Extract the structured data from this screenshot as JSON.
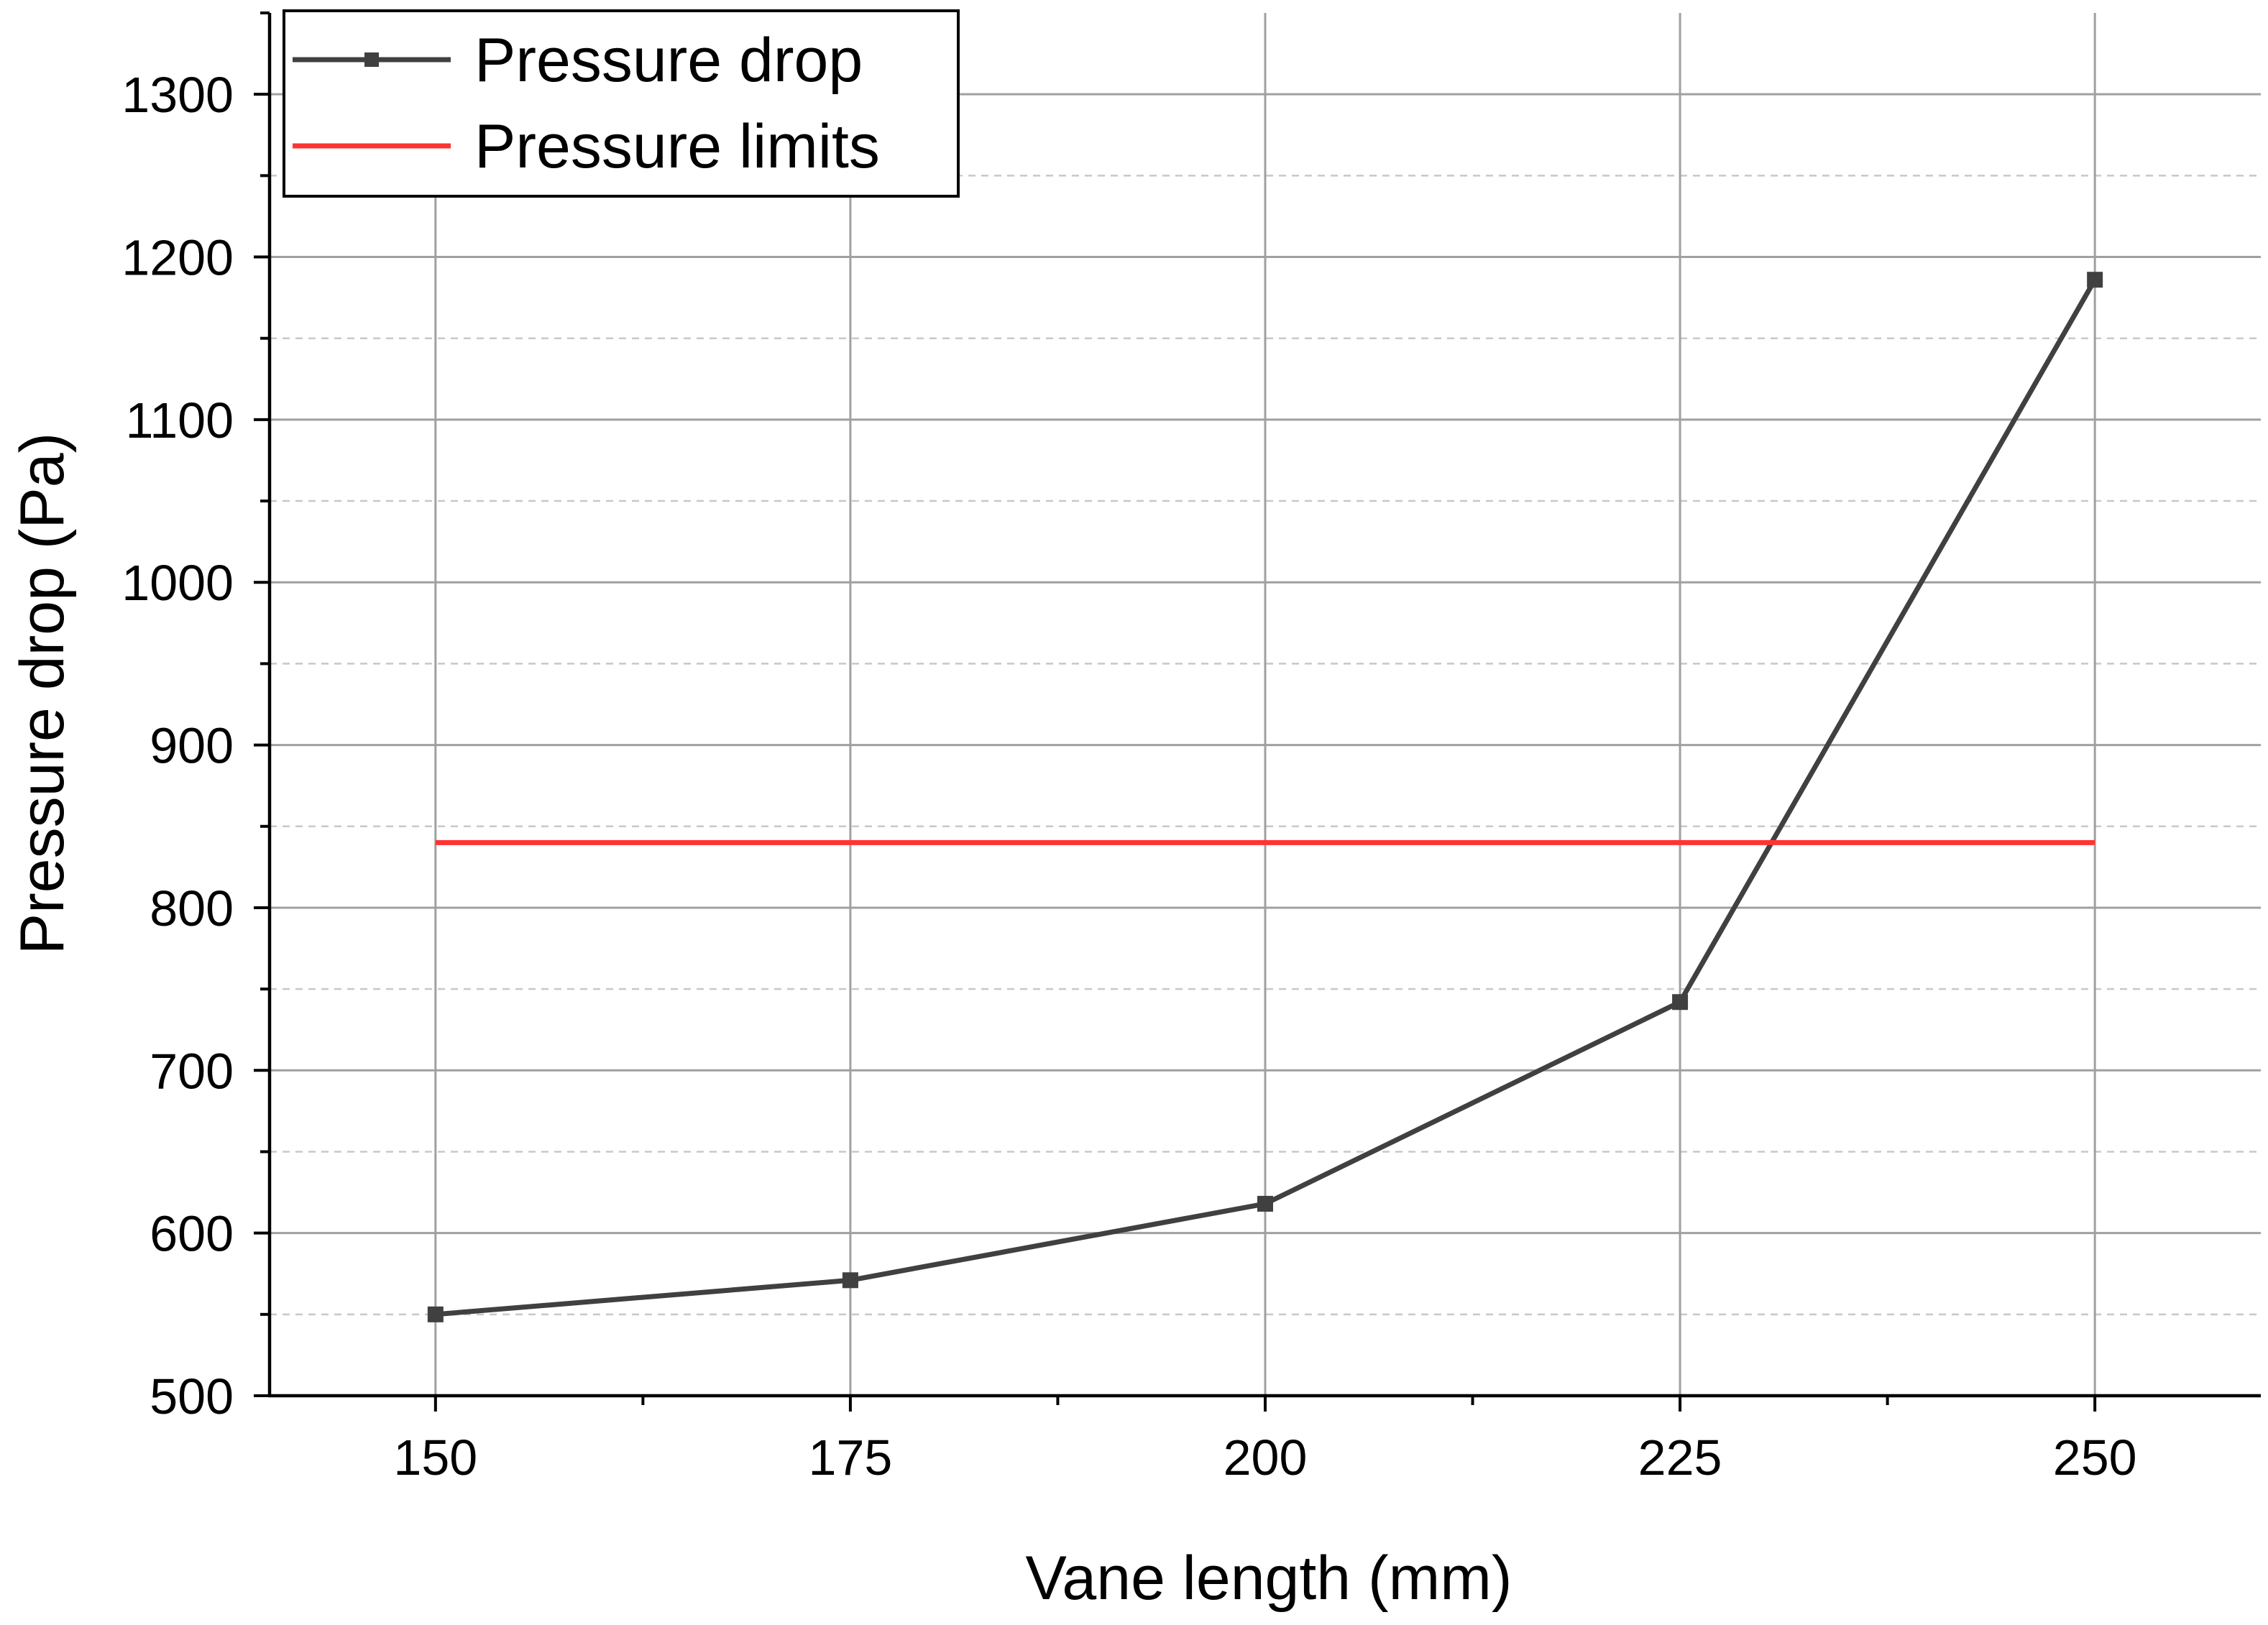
{
  "chart_data": {
    "type": "line",
    "xlabel": "Vane length (mm)",
    "ylabel": "Pressure drop (Pa)",
    "xlim": [
      140,
      260
    ],
    "ylim": [
      500,
      1350
    ],
    "xticks": [
      150,
      175,
      200,
      225,
      250
    ],
    "xtick_labels": [
      "150",
      "175",
      "200",
      "225",
      "250"
    ],
    "yticks": [
      500,
      600,
      700,
      800,
      900,
      1000,
      1100,
      1200,
      1300
    ],
    "ytick_labels": [
      "500",
      "600",
      "700",
      "800",
      "900",
      "1000",
      "1100",
      "1200",
      "1300"
    ],
    "y_minor_step": 50,
    "grid": true,
    "legend_position": "top-left",
    "series": [
      {
        "name": "Pressure drop",
        "color": "#404040",
        "marker": "square",
        "x": [
          150,
          175,
          200,
          225,
          250
        ],
        "y": [
          550,
          571,
          618,
          742,
          1186
        ]
      },
      {
        "name": "Pressure limits",
        "color": "#ff3333",
        "marker": "none",
        "x": [
          150,
          250
        ],
        "y": [
          840,
          840
        ]
      }
    ]
  }
}
